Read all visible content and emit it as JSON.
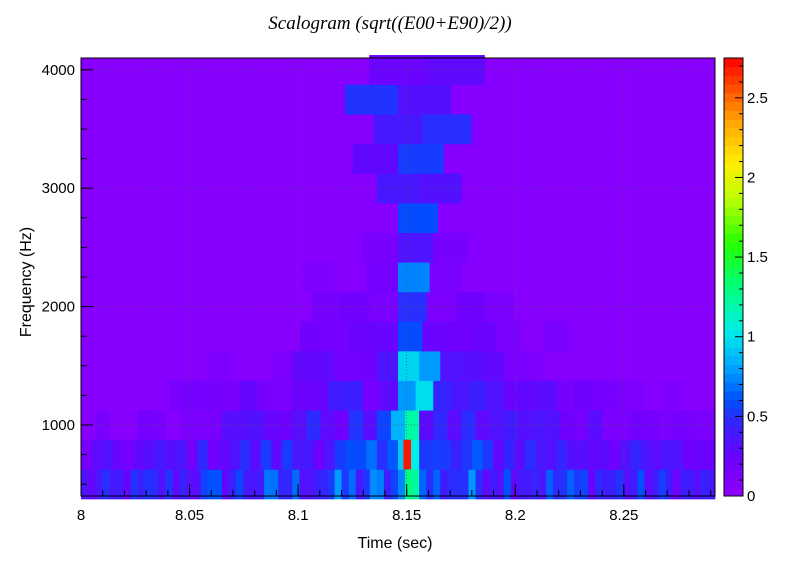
{
  "chart_data": {
    "type": "heatmap",
    "title": "Scalogram (sqrt((E00+E90)/2))",
    "xlabel": "Time (sec)",
    "ylabel": "Frequency (Hz)",
    "xlim": [
      8.0,
      8.292
    ],
    "ylim": [
      400,
      4100
    ],
    "xticks": [
      8,
      8.05,
      8.1,
      8.15,
      8.2,
      8.25
    ],
    "xtick_labels": [
      "8",
      "8.05",
      "8.1",
      "8.15",
      "8.2",
      "8.25"
    ],
    "yticks": [
      1000,
      2000,
      3000,
      4000
    ],
    "ytick_labels": [
      "1000",
      "2000",
      "3000",
      "4000"
    ],
    "grid": true,
    "colorbar": {
      "min": 0,
      "max": 2.75,
      "ticks": [
        0,
        0.5,
        1,
        1.5,
        2,
        2.5
      ],
      "tick_labels": [
        "0",
        "0.5",
        "1",
        "1.5",
        "2",
        "2.5"
      ]
    },
    "center_time": 8.152,
    "peak_value": 2.7,
    "frequency_rows_hz": [
      500,
      750,
      1000,
      1250,
      1500,
      1750,
      2000,
      2250,
      2500,
      2750,
      3000,
      3250,
      3500,
      3750,
      4000
    ]
  }
}
